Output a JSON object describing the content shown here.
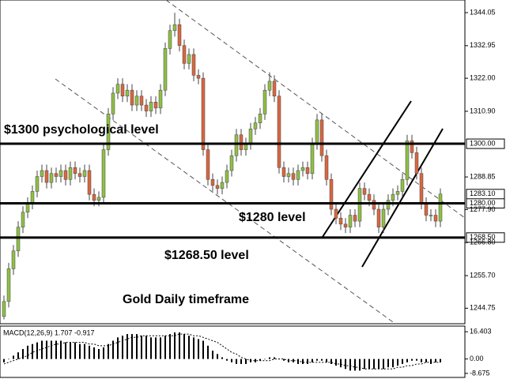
{
  "chart_data": {
    "type": "candlestick",
    "open": [
      1242,
      1247,
      1258,
      1264,
      1272,
      1277,
      1280,
      1284,
      1289,
      1291,
      1287,
      1290,
      1289,
      1291,
      1288,
      1292,
      1290,
      1289,
      1291,
      1283,
      1281,
      1282,
      1298,
      1310,
      1317,
      1320,
      1316,
      1318,
      1313,
      1316,
      1313,
      1311,
      1314,
      1312,
      1318,
      1332,
      1338,
      1340,
      1333,
      1327,
      1330,
      1323,
      1322,
      1298,
      1288,
      1286,
      1285,
      1287,
      1291,
      1296,
      1303,
      1298,
      1300,
      1305,
      1307,
      1310,
      1318,
      1321,
      1316,
      1292,
      1289,
      1290,
      1288,
      1291,
      1292,
      1290,
      1300,
      1308,
      1296,
      1288,
      1278,
      1275,
      1273,
      1272,
      1276,
      1274,
      1285,
      1283,
      1281,
      1278,
      1272,
      1278,
      1281,
      1283,
      1284,
      1288,
      1301,
      1297,
      1290,
      1280,
      1276,
      1276,
      1274
    ],
    "high": [
      1249,
      1260,
      1266,
      1274,
      1279,
      1282,
      1286,
      1291,
      1293,
      1293,
      1292,
      1292,
      1293,
      1293,
      1294,
      1294,
      1292,
      1293,
      1293,
      1285,
      1284,
      1300,
      1312,
      1319,
      1322,
      1322,
      1320,
      1320,
      1318,
      1318,
      1315,
      1316,
      1316,
      1320,
      1334,
      1340,
      1344,
      1342,
      1335,
      1332,
      1332,
      1325,
      1324,
      1300,
      1290,
      1288,
      1289,
      1293,
      1298,
      1305,
      1305,
      1302,
      1307,
      1309,
      1312,
      1320,
      1324,
      1323,
      1318,
      1294,
      1292,
      1292,
      1293,
      1294,
      1294,
      1302,
      1310,
      1310,
      1298,
      1290,
      1280,
      1277,
      1275,
      1278,
      1278,
      1287,
      1287,
      1285,
      1283,
      1280,
      1280,
      1283,
      1285,
      1286,
      1290,
      1303,
      1303,
      1299,
      1292,
      1282,
      1278,
      1278,
      1285
    ],
    "low": [
      1241,
      1245,
      1256,
      1262,
      1270,
      1275,
      1278,
      1282,
      1287,
      1285,
      1285,
      1287,
      1287,
      1286,
      1286,
      1288,
      1287,
      1287,
      1281,
      1279,
      1279,
      1280,
      1296,
      1308,
      1315,
      1314,
      1314,
      1311,
      1311,
      1311,
      1309,
      1309,
      1310,
      1310,
      1316,
      1330,
      1336,
      1331,
      1325,
      1325,
      1321,
      1320,
      1296,
      1286,
      1284,
      1283,
      1283,
      1285,
      1289,
      1294,
      1296,
      1296,
      1298,
      1303,
      1305,
      1308,
      1316,
      1314,
      1290,
      1287,
      1287,
      1286,
      1286,
      1289,
      1288,
      1288,
      1298,
      1294,
      1286,
      1276,
      1273,
      1271,
      1270,
      1270,
      1272,
      1272,
      1281,
      1279,
      1276,
      1270,
      1270,
      1276,
      1279,
      1281,
      1282,
      1286,
      1295,
      1288,
      1278,
      1274,
      1274,
      1272,
      1272
    ],
    "close": [
      1247,
      1258,
      1264,
      1272,
      1277,
      1280,
      1284,
      1289,
      1291,
      1287,
      1290,
      1289,
      1291,
      1288,
      1292,
      1290,
      1289,
      1291,
      1283,
      1281,
      1282,
      1298,
      1310,
      1317,
      1320,
      1316,
      1318,
      1313,
      1316,
      1313,
      1311,
      1314,
      1312,
      1318,
      1332,
      1338,
      1340,
      1333,
      1327,
      1330,
      1323,
      1322,
      1298,
      1288,
      1286,
      1285,
      1287,
      1291,
      1296,
      1303,
      1298,
      1300,
      1305,
      1307,
      1310,
      1318,
      1321,
      1316,
      1292,
      1289,
      1290,
      1288,
      1291,
      1292,
      1290,
      1300,
      1308,
      1296,
      1288,
      1278,
      1275,
      1273,
      1272,
      1276,
      1274,
      1285,
      1283,
      1281,
      1278,
      1272,
      1278,
      1281,
      1283,
      1284,
      1288,
      1301,
      1297,
      1290,
      1280,
      1276,
      1276,
      1274,
      1283.1
    ],
    "up_color": "#8fbf45",
    "down_color": "#d9663f",
    "ylim": [
      1239.54,
      1348.29
    ],
    "yticks": [
      {
        "value": 1344.05,
        "label": "1344.05"
      },
      {
        "value": 1332.95,
        "label": "1332.95"
      },
      {
        "value": 1322,
        "label": "1322.00"
      },
      {
        "value": 1310.9,
        "label": "1310.90"
      },
      {
        "value": 1288.85,
        "label": "1288.85"
      },
      {
        "value": 1277.9,
        "label": "1277.90"
      },
      {
        "value": 1266.8,
        "label": "1266.80"
      },
      {
        "value": 1255.7,
        "label": "1255.70"
      },
      {
        "value": 1244.75,
        "label": "1244.75"
      }
    ],
    "levels": [
      {
        "value": 1300,
        "label": "1300.00"
      },
      {
        "value": 1280,
        "label": "1280.00"
      },
      {
        "value": 1268.5,
        "label": "1268.50"
      }
    ],
    "last_price": {
      "value": 1283.1,
      "label": "1283.10"
    },
    "annotations": [
      "$1300 psychological level",
      "$1280 level",
      "$1268.50 level",
      "Gold Daily timeframe"
    ],
    "macd": {
      "title": "MACD(12,26,9) 1.707 -0.917",
      "values": [
        -2,
        0,
        2,
        4,
        6,
        8,
        9,
        10,
        11,
        11,
        11,
        11,
        11,
        10,
        10,
        10,
        9,
        9,
        8,
        7,
        6,
        7,
        9,
        11,
        13,
        14,
        15,
        15,
        15,
        14,
        14,
        13,
        13,
        13,
        14,
        15,
        16,
        16,
        15,
        14,
        13,
        12,
        11,
        8,
        5,
        3,
        1,
        -1,
        -2,
        -3,
        -3,
        -3,
        -2,
        -2,
        -1,
        0,
        1,
        1,
        0,
        -1,
        -2,
        -2,
        -3,
        -3,
        -3,
        -2,
        -1,
        -1,
        -2,
        -3,
        -4,
        -5,
        -6,
        -7,
        -7,
        -7,
        -6,
        -6,
        -6,
        -6,
        -6,
        -5,
        -5,
        -4,
        -3,
        -2,
        -1,
        -1,
        -2,
        -2,
        -3,
        -2,
        -2
      ],
      "signal": [
        -3,
        -2,
        -1,
        0,
        1,
        2,
        4,
        5,
        6,
        7,
        8,
        9,
        9,
        10,
        10,
        10,
        10,
        10,
        9,
        9,
        8,
        8,
        8,
        9,
        10,
        11,
        12,
        13,
        13,
        14,
        14,
        14,
        14,
        14,
        14,
        14,
        14,
        15,
        15,
        15,
        14,
        14,
        13,
        12,
        11,
        10,
        8,
        6,
        4,
        3,
        1,
        0,
        -1,
        -1,
        -1,
        -1,
        -1,
        0,
        0,
        0,
        -1,
        -1,
        -1,
        -2,
        -2,
        -2,
        -2,
        -2,
        -2,
        -2,
        -3,
        -3,
        -4,
        -4,
        -5,
        -5,
        -6,
        -6,
        -6,
        -6,
        -6,
        -6,
        -6,
        -5,
        -5,
        -4,
        -4,
        -3,
        -3,
        -2,
        -2,
        -2,
        -2
      ],
      "ylim": [
        -11.1,
        19.8
      ],
      "yticks": [
        16.403,
        {
          "value": 0,
          "label": "0.00"
        },
        -8.675
      ]
    }
  }
}
